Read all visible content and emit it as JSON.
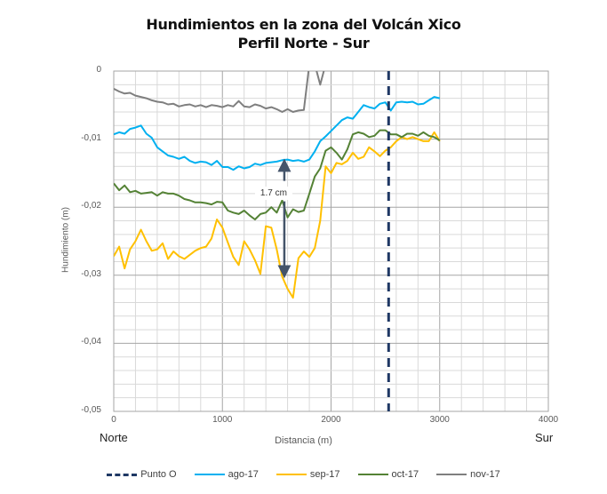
{
  "chart_data": {
    "type": "line",
    "title": "Hundimientos en la zona del Volcán Xico",
    "subtitle": "Perfil Norte - Sur",
    "xlabel": "Distancia (m)",
    "ylabel": "Hundimiento (m)",
    "xlim": [
      0,
      4000
    ],
    "ylim": [
      -0.05,
      0
    ],
    "x_ticks": [
      0,
      1000,
      2000,
      3000,
      4000
    ],
    "x_tick_labels": [
      "0",
      "1000",
      "2000",
      "3000",
      "4000"
    ],
    "y_ticks": [
      0,
      -0.01,
      -0.02,
      -0.03,
      -0.04,
      -0.05
    ],
    "y_tick_labels": [
      "0",
      "-0,01",
      "-0,02",
      "-0,03",
      "-0,04",
      "-0,05"
    ],
    "x_end_labels": {
      "left": "Norte",
      "right": "Sur"
    },
    "grid": true,
    "legend_position": "bottom",
    "vertical_marker": {
      "name": "Punto O",
      "x": 2530,
      "color": "#1f3864",
      "style": "dashed"
    },
    "annotation": {
      "text": "1.7 cm",
      "x": 1570,
      "y_top": -0.0133,
      "y_bottom": -0.03
    },
    "x": [
      0,
      50,
      100,
      150,
      200,
      250,
      300,
      350,
      400,
      450,
      500,
      550,
      600,
      650,
      700,
      750,
      800,
      850,
      900,
      950,
      1000,
      1050,
      1100,
      1150,
      1200,
      1250,
      1300,
      1350,
      1400,
      1450,
      1500,
      1550,
      1600,
      1650,
      1700,
      1750,
      1800,
      1850,
      1900,
      1950,
      2000,
      2050,
      2100,
      2150,
      2200,
      2250,
      2300,
      2350,
      2400,
      2450,
      2500,
      2550,
      2600,
      2650,
      2700,
      2750,
      2800,
      2850,
      2900,
      2950,
      3000
    ],
    "series": [
      {
        "name": "ago-17",
        "color": "#00b0f0",
        "values": [
          -0.0093,
          -0.009,
          -0.0092,
          -0.0085,
          -0.0083,
          -0.008,
          -0.0092,
          -0.0098,
          -0.0112,
          -0.0118,
          -0.0124,
          -0.0126,
          -0.0129,
          -0.0126,
          -0.0132,
          -0.0135,
          -0.0133,
          -0.0134,
          -0.0138,
          -0.0132,
          -0.0141,
          -0.0141,
          -0.0145,
          -0.014,
          -0.0143,
          -0.0141,
          -0.0136,
          -0.0138,
          -0.0135,
          -0.0134,
          -0.0133,
          -0.0131,
          -0.013,
          -0.0132,
          -0.0131,
          -0.0133,
          -0.013,
          -0.0118,
          -0.0103,
          -0.0096,
          -0.0088,
          -0.008,
          -0.0072,
          -0.0068,
          -0.007,
          -0.006,
          -0.005,
          -0.0053,
          -0.0055,
          -0.0048,
          -0.0046,
          -0.0058,
          -0.0046,
          -0.0045,
          -0.0046,
          -0.0045,
          -0.0049,
          -0.0048,
          -0.0043,
          -0.0038,
          -0.004
        ]
      },
      {
        "name": "sep-17",
        "color": "#ffc000",
        "values": [
          -0.0272,
          -0.0258,
          -0.029,
          -0.0262,
          -0.025,
          -0.0233,
          -0.025,
          -0.0264,
          -0.0262,
          -0.0253,
          -0.0276,
          -0.0265,
          -0.0272,
          -0.0276,
          -0.027,
          -0.0264,
          -0.026,
          -0.0258,
          -0.0246,
          -0.0218,
          -0.023,
          -0.0252,
          -0.0273,
          -0.0285,
          -0.025,
          -0.0262,
          -0.0278,
          -0.0298,
          -0.0228,
          -0.023,
          -0.0262,
          -0.0302,
          -0.032,
          -0.0333,
          -0.0275,
          -0.0265,
          -0.0273,
          -0.026,
          -0.022,
          -0.014,
          -0.015,
          -0.0135,
          -0.0137,
          -0.0132,
          -0.012,
          -0.0129,
          -0.0126,
          -0.0112,
          -0.0118,
          -0.0125,
          -0.0117,
          -0.0112,
          -0.0103,
          -0.0097,
          -0.01,
          -0.0097,
          -0.01,
          -0.0103,
          -0.0103,
          -0.009,
          -0.0103
        ]
      },
      {
        "name": "oct-17",
        "color": "#548235",
        "values": [
          -0.0165,
          -0.0175,
          -0.0168,
          -0.0178,
          -0.0176,
          -0.018,
          -0.0179,
          -0.0178,
          -0.0183,
          -0.0178,
          -0.018,
          -0.018,
          -0.0183,
          -0.0188,
          -0.019,
          -0.0193,
          -0.0193,
          -0.0194,
          -0.0196,
          -0.0192,
          -0.0193,
          -0.0205,
          -0.0208,
          -0.021,
          -0.0205,
          -0.0212,
          -0.0218,
          -0.021,
          -0.0208,
          -0.02,
          -0.0208,
          -0.019,
          -0.0215,
          -0.0203,
          -0.0207,
          -0.0205,
          -0.018,
          -0.0155,
          -0.0143,
          -0.0117,
          -0.0112,
          -0.012,
          -0.013,
          -0.0115,
          -0.0093,
          -0.009,
          -0.0092,
          -0.0097,
          -0.0095,
          -0.0087,
          -0.0087,
          -0.0093,
          -0.0093,
          -0.0097,
          -0.0092,
          -0.0092,
          -0.0095,
          -0.009,
          -0.0095,
          -0.0097,
          -0.0102
        ]
      },
      {
        "name": "nov-17",
        "color": "#7f7f7f",
        "values": [
          -0.0026,
          -0.003,
          -0.0033,
          -0.0032,
          -0.0036,
          -0.0038,
          -0.004,
          -0.0043,
          -0.0045,
          -0.0046,
          -0.0049,
          -0.0048,
          -0.0052,
          -0.005,
          -0.0049,
          -0.0052,
          -0.005,
          -0.0053,
          -0.005,
          -0.0051,
          -0.0053,
          -0.005,
          -0.0052,
          -0.0044,
          -0.0052,
          -0.0053,
          -0.0049,
          -0.0051,
          -0.0055,
          -0.0053,
          -0.0056,
          -0.006,
          -0.0056,
          -0.006,
          -0.0058,
          -0.0057,
          0.001,
          0.001,
          -0.002,
          0.001,
          null,
          null,
          null,
          null,
          null,
          null,
          null,
          null,
          null,
          null,
          null,
          null,
          null,
          null,
          null,
          null,
          null,
          null,
          null,
          null,
          null
        ]
      }
    ]
  },
  "legend": {
    "items": [
      {
        "label": "Punto O",
        "color": "#1f3864",
        "style": "dashed"
      },
      {
        "label": "ago-17",
        "color": "#00b0f0",
        "style": "solid"
      },
      {
        "label": "sep-17",
        "color": "#ffc000",
        "style": "solid"
      },
      {
        "label": "oct-17",
        "color": "#548235",
        "style": "solid"
      },
      {
        "label": "nov-17",
        "color": "#7f7f7f",
        "style": "solid"
      }
    ]
  }
}
